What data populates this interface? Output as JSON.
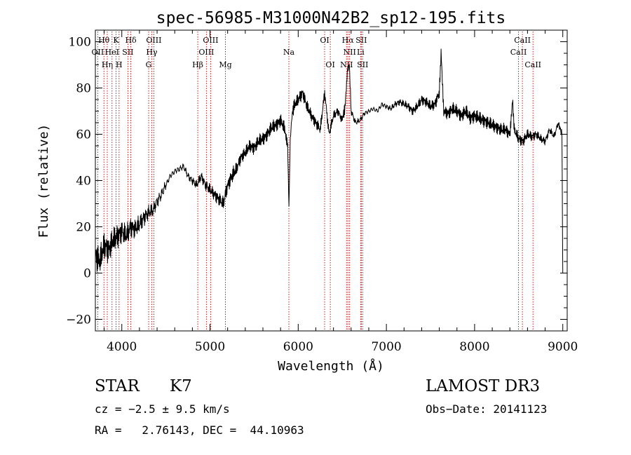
{
  "chart_data": {
    "type": "line",
    "title": "spec-56985-M31000N42B2_sp12-195.fits",
    "xlabel": "Wavelength (Å)",
    "ylabel": "Flux (relative)",
    "xlim": [
      3700,
      9050
    ],
    "ylim": [
      -25,
      105
    ],
    "xticks": [
      4000,
      5000,
      6000,
      7000,
      8000,
      9000
    ],
    "yticks": [
      -20,
      0,
      20,
      40,
      60,
      80,
      100
    ],
    "x_tick_labels": [
      "4000",
      "5000",
      "6000",
      "7000",
      "8000",
      "9000"
    ],
    "y_tick_labels": [
      "−20",
      "0",
      "20",
      "40",
      "60",
      "80",
      "100"
    ],
    "grid": false,
    "series": [
      {
        "name": "flux",
        "x": [
          3700,
          3750,
          3800,
          3850,
          3900,
          3950,
          4000,
          4050,
          4100,
          4150,
          4200,
          4250,
          4300,
          4350,
          4400,
          4450,
          4500,
          4550,
          4600,
          4650,
          4700,
          4750,
          4800,
          4850,
          4900,
          4950,
          5000,
          5050,
          5100,
          5150,
          5200,
          5250,
          5300,
          5350,
          5400,
          5450,
          5500,
          5550,
          5600,
          5650,
          5700,
          5750,
          5800,
          5850,
          5880,
          5895,
          5910,
          5930,
          5950,
          6000,
          6050,
          6100,
          6150,
          6200,
          6250,
          6300,
          6350,
          6400,
          6450,
          6500,
          6530,
          6560,
          6580,
          6600,
          6650,
          6700,
          6750,
          6800,
          6850,
          6900,
          6950,
          7000,
          7050,
          7100,
          7150,
          7200,
          7250,
          7300,
          7350,
          7400,
          7450,
          7500,
          7550,
          7600,
          7620,
          7650,
          7700,
          7750,
          7800,
          7850,
          7900,
          7950,
          8000,
          8050,
          8100,
          8150,
          8200,
          8250,
          8300,
          8350,
          8400,
          8430,
          8450,
          8500,
          8550,
          8600,
          8650,
          8700,
          8750,
          8800,
          8850,
          8900,
          8950,
          8990,
          9000
        ],
        "values": [
          8,
          5,
          12,
          10,
          14,
          16,
          18,
          16,
          20,
          19,
          21,
          24,
          26,
          27,
          31,
          34,
          38,
          42,
          44,
          45,
          46,
          42,
          40,
          38,
          42,
          38,
          36,
          34,
          32,
          30,
          38,
          42,
          45,
          50,
          52,
          55,
          54,
          57,
          58,
          60,
          63,
          64,
          66,
          62,
          55,
          28,
          58,
          68,
          72,
          75,
          78,
          72,
          68,
          65,
          62,
          78,
          60,
          68,
          70,
          66,
          72,
          88,
          90,
          70,
          65,
          66,
          69,
          70,
          71,
          70,
          73,
          72,
          71,
          73,
          74,
          73,
          72,
          70,
          72,
          75,
          74,
          72,
          73,
          78,
          95,
          70,
          69,
          71,
          70,
          68,
          70,
          67,
          68,
          67,
          66,
          65,
          64,
          63,
          62,
          62,
          60,
          75,
          62,
          58,
          57,
          60,
          59,
          60,
          58,
          57,
          62,
          59,
          65,
          60,
          0
        ]
      }
    ],
    "line_markers": [
      {
        "label": "OII",
        "x": 3727,
        "row": 1
      },
      {
        "label": "Hθ",
        "x": 3797,
        "row": 0
      },
      {
        "label": "Hη",
        "x": 3835,
        "row": 2
      },
      {
        "label": "HeI",
        "x": 3889,
        "row": 1
      },
      {
        "label": "K",
        "x": 3934,
        "row": 0
      },
      {
        "label": "H",
        "x": 3969,
        "row": 2
      },
      {
        "label": "SII",
        "x": 4069,
        "row": 1
      },
      {
        "label": "Hδ",
        "x": 4102,
        "row": 0
      },
      {
        "label": "G",
        "x": 4304,
        "row": 2
      },
      {
        "label": "Hγ",
        "x": 4340,
        "row": 1
      },
      {
        "label": "OIII",
        "x": 4363,
        "row": 0
      },
      {
        "label": "Hβ",
        "x": 4861,
        "row": 2
      },
      {
        "label": "OIII",
        "x": 4959,
        "row": 1
      },
      {
        "label": "OIII",
        "x": 5007,
        "row": 0
      },
      {
        "label": "Mg",
        "x": 5175,
        "row": 2
      },
      {
        "label": "Na",
        "x": 5894,
        "row": 1
      },
      {
        "label": "OI",
        "x": 6300,
        "row": 0
      },
      {
        "label": "OI",
        "x": 6364,
        "row": 2
      },
      {
        "label": "NII",
        "x": 6548,
        "row": 2
      },
      {
        "label": "Hα",
        "x": 6563,
        "row": 0
      },
      {
        "label": "NII",
        "x": 6583,
        "row": 1
      },
      {
        "label": "Li",
        "x": 6708,
        "row": 1
      },
      {
        "label": "SII",
        "x": 6716,
        "row": 0
      },
      {
        "label": "SII",
        "x": 6731,
        "row": 2
      },
      {
        "label": "CaII",
        "x": 8498,
        "row": 1
      },
      {
        "label": "CaII",
        "x": 8542,
        "row": 0
      },
      {
        "label": "CaII",
        "x": 8662,
        "row": 2
      }
    ]
  },
  "info": {
    "object_class": "STAR",
    "subclass": "K7",
    "survey": "LAMOST DR3",
    "redshift": "cz = −2.5 ± 9.5 km/s",
    "obs_date": "Obs−Date: 20141123",
    "coords": "RA =   2.76143, DEC =  44.10963"
  },
  "colors": {
    "line": "#000000",
    "marker": "#cc0000",
    "background": "#ffffff"
  }
}
